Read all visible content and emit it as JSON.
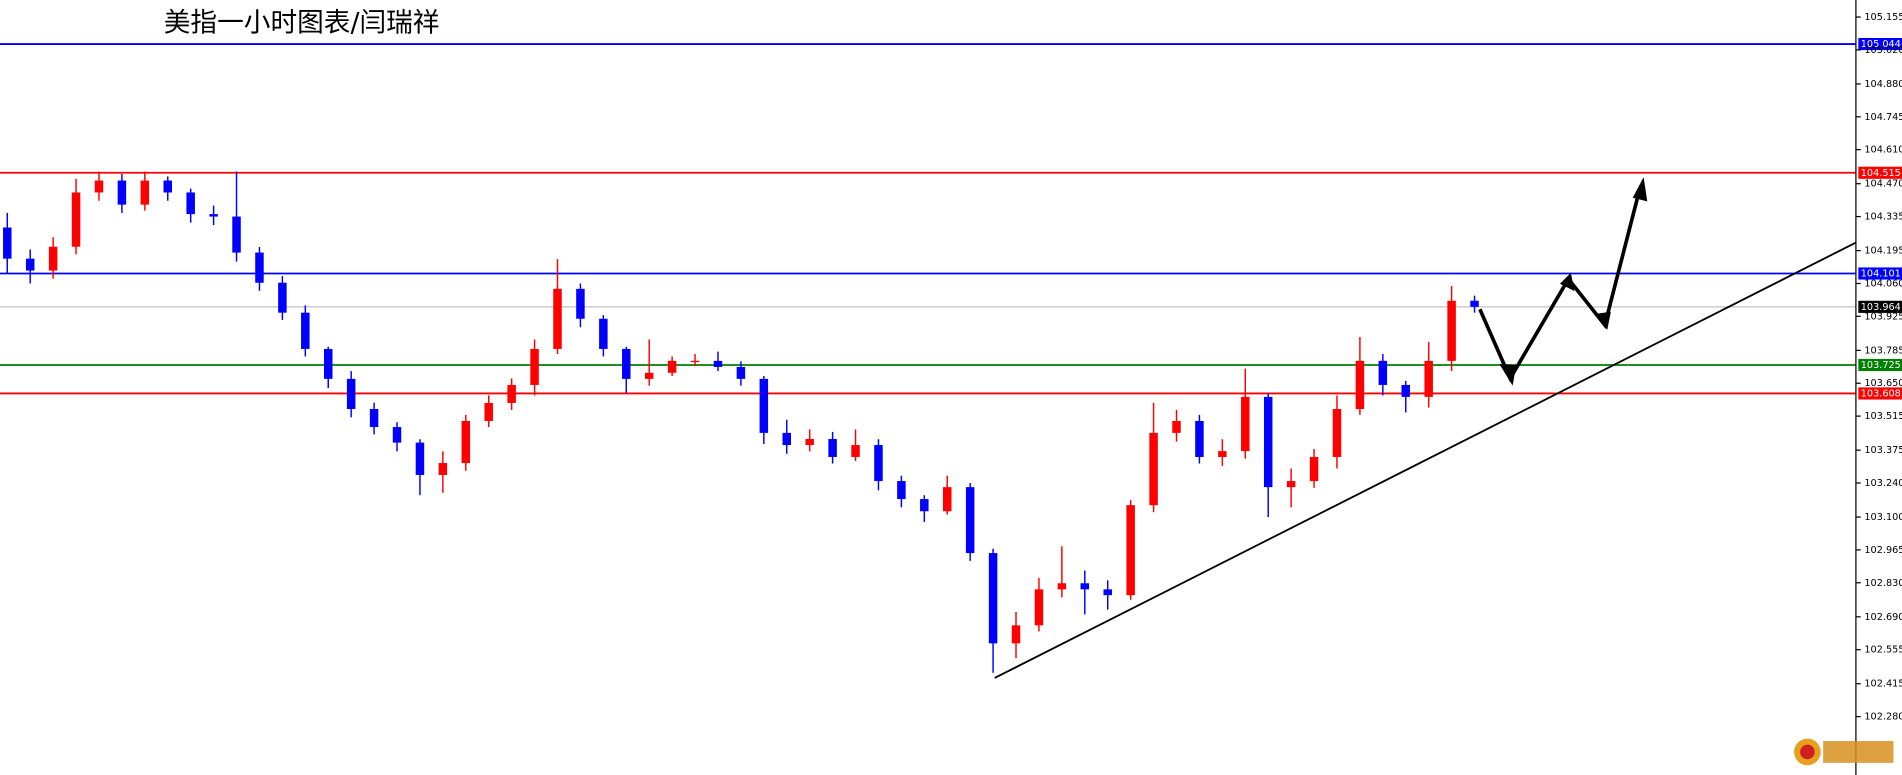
{
  "chart_data": {
    "type": "candlestick",
    "title": "美指一小时图表/闫瑞祥",
    "up_color": "#ff0000",
    "down_color": "#0000ff",
    "ylim": [
      102.04,
      105.225
    ],
    "yticks": [
      105.155,
      {
        "value": 105.02,
        "label": "105.020"
      },
      {
        "value": 104.88,
        "label": "104.880"
      },
      104.745,
      {
        "value": 104.61,
        "label": "104.610"
      },
      {
        "value": 104.47,
        "label": "104.470"
      },
      104.335,
      104.195,
      {
        "value": 104.06,
        "label": "104.060"
      },
      103.925,
      103.785,
      {
        "value": 103.65,
        "label": "103.650"
      },
      103.515,
      103.375,
      {
        "value": 103.24,
        "label": "103.240"
      },
      {
        "value": 103.1,
        "label": "103.100"
      },
      102.965,
      {
        "value": 102.83,
        "label": "102.830"
      },
      {
        "value": 102.69,
        "label": "102.690"
      },
      102.555,
      102.415,
      {
        "value": 102.28,
        "label": "102.280"
      }
    ],
    "levels": [
      {
        "value": 105.044,
        "color": "#0000ff"
      },
      {
        "value": 104.515,
        "color": "#ff0000"
      },
      {
        "value": 104.101,
        "color": "#0000ff"
      },
      {
        "value": 103.964,
        "color": "#000000"
      },
      {
        "value": 103.725,
        "color": "#008000"
      },
      {
        "value": 103.608,
        "color": "#ff0000"
      }
    ],
    "open": [
      104.29,
      104.162,
      104.113,
      104.211,
      104.434,
      104.483,
      104.384,
      104.483,
      104.434,
      104.345,
      104.335,
      104.187,
      104.063,
      103.94,
      103.791,
      103.668,
      103.544,
      103.47,
      103.406,
      103.273,
      103.322,
      103.495,
      103.569,
      103.643,
      103.791,
      104.038,
      103.915,
      103.791,
      103.668,
      103.693,
      103.742,
      103.742,
      103.717,
      103.668,
      103.446,
      103.396,
      103.421,
      103.347,
      103.396,
      103.248,
      103.174,
      103.124,
      103.223,
      102.952,
      102.581,
      102.655,
      102.803,
      102.828,
      102.803,
      102.779,
      103.149,
      103.446,
      103.495,
      103.347,
      103.371,
      103.594,
      103.223,
      103.248,
      103.347,
      103.544,
      103.742,
      103.643,
      103.594,
      103.742,
      103.989
    ],
    "high": [
      104.35,
      104.2,
      104.25,
      104.49,
      104.52,
      104.51,
      104.52,
      104.5,
      104.45,
      104.38,
      104.52,
      104.21,
      104.09,
      103.97,
      103.8,
      103.7,
      103.57,
      103.49,
      103.42,
      103.37,
      103.52,
      103.6,
      103.67,
      103.83,
      104.16,
      104.06,
      103.93,
      103.8,
      103.83,
      103.76,
      103.77,
      103.78,
      103.74,
      103.68,
      103.5,
      103.46,
      103.45,
      103.46,
      103.42,
      103.27,
      103.19,
      103.27,
      103.24,
      102.97,
      102.71,
      102.85,
      102.98,
      102.88,
      102.84,
      103.17,
      103.57,
      103.54,
      103.52,
      103.42,
      103.71,
      103.61,
      103.3,
      103.38,
      103.6,
      103.84,
      103.77,
      103.66,
      103.82,
      104.05,
      104.01
    ],
    "low": [
      104.1,
      104.06,
      104.08,
      104.18,
      104.4,
      104.35,
      104.36,
      104.4,
      104.31,
      104.3,
      104.15,
      104.03,
      103.91,
      103.76,
      103.63,
      103.51,
      103.44,
      103.37,
      103.19,
      103.2,
      103.29,
      103.47,
      103.54,
      103.6,
      103.77,
      103.88,
      103.76,
      103.61,
      103.64,
      103.68,
      103.72,
      103.7,
      103.64,
      103.4,
      103.36,
      103.37,
      103.32,
      103.33,
      103.21,
      103.14,
      103.08,
      103.11,
      102.92,
      102.46,
      102.52,
      102.63,
      102.77,
      102.7,
      102.72,
      102.76,
      103.12,
      103.41,
      103.32,
      103.31,
      103.34,
      103.1,
      103.14,
      103.22,
      103.3,
      103.52,
      103.6,
      103.53,
      103.55,
      103.7,
      103.94
    ],
    "close": [
      104.162,
      104.113,
      104.211,
      104.434,
      104.483,
      104.384,
      104.483,
      104.434,
      104.345,
      104.335,
      104.187,
      104.063,
      103.94,
      103.791,
      103.668,
      103.544,
      103.47,
      103.406,
      103.273,
      103.322,
      103.495,
      103.569,
      103.643,
      103.791,
      104.038,
      103.915,
      103.791,
      103.668,
      103.693,
      103.742,
      103.742,
      103.717,
      103.668,
      103.446,
      103.396,
      103.421,
      103.347,
      103.396,
      103.248,
      103.174,
      103.124,
      103.223,
      102.952,
      102.581,
      102.655,
      102.803,
      102.828,
      102.803,
      102.779,
      103.149,
      103.446,
      103.495,
      103.347,
      103.371,
      103.594,
      103.223,
      103.248,
      103.347,
      103.544,
      103.742,
      103.643,
      103.594,
      103.742,
      103.989,
      103.964
    ]
  }
}
